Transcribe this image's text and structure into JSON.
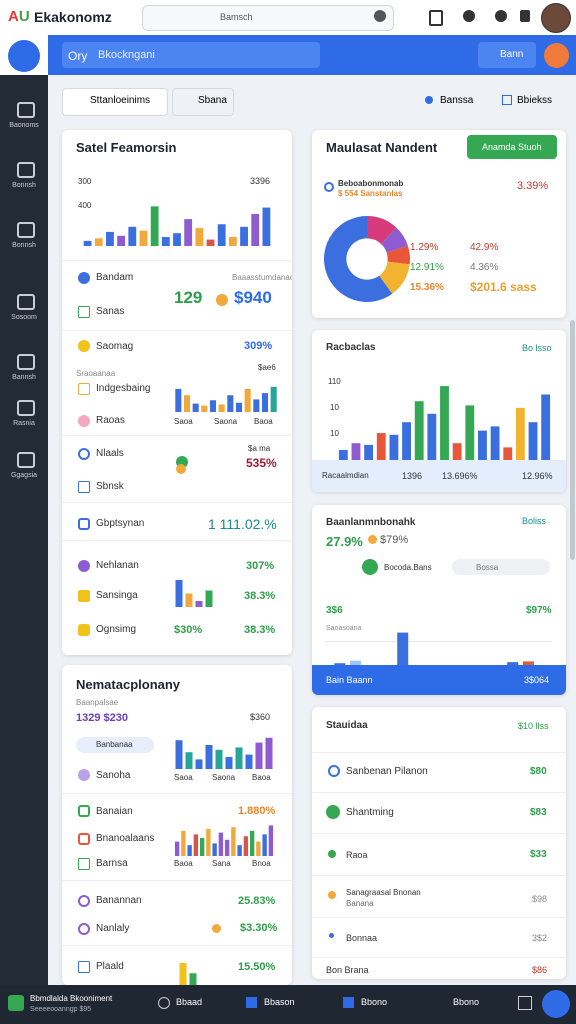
{
  "header": {
    "brand": "Ekakonomz",
    "search": "Bamsch"
  },
  "topbar": {
    "filter_label": "Ory",
    "filter_value": "Bkockngani",
    "button": "Bann"
  },
  "sidebar": [
    "Baonoms",
    "Bonnsh",
    "Bonnsh",
    "Sosoom",
    "Bannsh",
    "Rasnia",
    "Ggagsia"
  ],
  "toolbar": {
    "tabs": [
      "Sttanloeinims",
      "Sbana"
    ],
    "actions": [
      "Banssa",
      "Bbiekss"
    ]
  },
  "sales": {
    "title": "Satel Feamorsin",
    "axis": [
      "300",
      "400"
    ],
    "peak": "3396",
    "chart": {
      "ylim": [
        0,
        100
      ],
      "values": [
        8,
        12,
        22,
        16,
        30,
        24,
        62,
        14,
        20,
        42,
        28,
        10,
        34,
        14,
        30,
        50,
        60
      ],
      "colors": [
        "#3b6fe0",
        "#f2a93b",
        "#3b6fe0",
        "#8e5bd0",
        "#3b6fe0",
        "#f2a93b",
        "#34a853",
        "#3b6fe0",
        "#3b6fe0",
        "#8e5bd0",
        "#f2a93b",
        "#d9534f",
        "#3b6fe0",
        "#f2a93b",
        "#3b6fe0",
        "#8e5bd0",
        "#3b6fe0"
      ]
    },
    "rows": {
      "bandam": "Bandam",
      "note": "Baaasstumdanao",
      "stat1": "129",
      "stat2": "$940",
      "sanas": "Sanas",
      "saomag": "Saomag",
      "saomag_value": "309%",
      "small": "Sraoaanaa",
      "mini_note": "$ae6",
      "mini_labels": [
        "Saoa",
        "Saona",
        "Baoa"
      ],
      "indg": "Indgesbaing",
      "raoas": "Raoas",
      "nlaals": "Nlaals",
      "nlaals_note": "$a ma",
      "nlaals_value": "535%",
      "sbnsk": "Sbnsk",
      "gbpt": "Gbptsynan",
      "gbpt_value": "1 111.02.%",
      "nehl": "Nehlanan",
      "nehl_value": "307%",
      "sans": "Sansinga",
      "sans_value": "38.3%",
      "ogn": "Ognsimg",
      "ogn_value1": "$30%",
      "ogn_value2": "38.3%"
    },
    "mini": {
      "ylim": [
        0,
        100
      ],
      "values": [
        55,
        40,
        20,
        15,
        28,
        18,
        40,
        22,
        55,
        30,
        45,
        60
      ],
      "colors": [
        "#3b6fe0",
        "#f2a93b",
        "#3b6fe0",
        "#f2a93b",
        "#3b6fe0",
        "#f2a93b",
        "#3b6fe0",
        "#3b6fe0",
        "#f2a93b",
        "#3b6fe0",
        "#3b6fe0",
        "#26a69a"
      ]
    },
    "mini2": {
      "ylim": [
        0,
        100
      ],
      "values": [
        90,
        45,
        20,
        55
      ],
      "colors": [
        "#3b6fe0",
        "#f2a93b",
        "#8e5bd0",
        "#34a853"
      ]
    }
  },
  "nemata": {
    "title": "Nematacplonany",
    "sub": "Baanpalsae",
    "stat": "1329 $230",
    "peak": "$360",
    "pill": "Banbanaa",
    "sanoha": "Sanoha",
    "labels": [
      "Saoa",
      "Saona",
      "Baoa"
    ],
    "chart": {
      "ylim": [
        0,
        100
      ],
      "values": [
        60,
        35,
        20,
        50,
        40,
        25,
        45,
        30,
        55,
        65
      ],
      "colors": [
        "#3b6fe0",
        "#26a69a",
        "#3b6fe0",
        "#3b6fe0",
        "#26a69a",
        "#3b6fe0",
        "#26a69a",
        "#3b6fe0",
        "#8e5bd0",
        "#8e5bd0"
      ]
    },
    "banaian": "Banaian",
    "banaian_value": "1.880%",
    "bnano": "Bnanoalaans",
    "bnano_labels": [
      "Baoa",
      "Sana",
      "Bnoa"
    ],
    "chart2": {
      "ylim": [
        0,
        100
      ],
      "values": [
        40,
        70,
        30,
        60,
        50,
        75,
        35,
        65,
        45,
        80,
        30,
        55,
        70,
        40,
        60,
        85
      ],
      "colors": [
        "#8e5bd0",
        "#f2a93b",
        "#3b6fe0",
        "#d9534f",
        "#34a853",
        "#f2a93b",
        "#3b6fe0",
        "#8e5bd0"
      ]
    },
    "barnsa": "Barnsa",
    "banannan": "Banannan",
    "banannan_value": "25.83%",
    "nanlaly": "Nanlaly",
    "nanlaly_value": "$3.30%",
    "plaald": "Plaald",
    "plaald_value": "15.50%",
    "chart3": {
      "ylim": [
        0,
        100
      ],
      "values": [
        85,
        45
      ],
      "colors": [
        "#f2c21b",
        "#34a853"
      ]
    }
  },
  "maul": {
    "title": "Maulasat Nandent",
    "button": "Anamda Stuoh",
    "legend_title": "Beboabonmonab",
    "legend_sub": "$ 554 Sanstanlas",
    "legend_value": "3.39%",
    "donut": {
      "values": [
        12,
        8,
        7,
        13,
        60
      ],
      "colors": [
        "#d63a7a",
        "#8e5bd0",
        "#e8573a",
        "#f2b430",
        "#3b6fe0"
      ]
    },
    "stats": [
      [
        "1.29%",
        "42.9%"
      ],
      [
        "12.91%",
        "4.36%"
      ],
      [
        "15.36%",
        "$201.6 sass"
      ]
    ]
  },
  "rac": {
    "title": "Racbaclas",
    "link": "Bo lsso",
    "axis": [
      "110",
      "10",
      "10"
    ],
    "chart": {
      "ylim": [
        0,
        100
      ],
      "values": [
        12,
        20,
        18,
        32,
        30,
        45,
        70,
        55,
        88,
        20,
        65,
        35,
        40,
        15,
        62,
        45,
        78
      ],
      "colors": [
        "#3b6fe0",
        "#8e5bd0",
        "#3b6fe0",
        "#e8573a",
        "#3b6fe0",
        "#3b6fe0",
        "#34a853",
        "#3b6fe0",
        "#34a853",
        "#e8573a",
        "#34a853",
        "#3b6fe0",
        "#3b6fe0",
        "#e8573a",
        "#f2b430",
        "#3b6fe0",
        "#3b6fe0"
      ]
    },
    "footer": [
      "Racaalmdian",
      "1396",
      "13.696%",
      "12.96%"
    ]
  },
  "baan": {
    "title": "Baanlanmnbonahk",
    "link": "Boliss",
    "stat1": "27.9%",
    "stat2": "$79%",
    "tag": "Bocoda.Bans",
    "pill": "Bossa",
    "left": "3$6",
    "right": "$97%",
    "small": "Saoasoana",
    "chart": {
      "ylim": [
        0,
        100
      ],
      "values": [
        5,
        12,
        0,
        0,
        90,
        0,
        0,
        0,
        0,
        0,
        0,
        8,
        10,
        0
      ],
      "colors": [
        "#3b6fe0",
        "#9cc4f5",
        "#3b6fe0",
        "#3b6fe0",
        "#3b6fe0",
        "#3b6fe0",
        "#3b6fe0",
        "#3b6fe0",
        "#3b6fe0",
        "#3b6fe0",
        "#3b6fe0",
        "#3b6fe0",
        "#e8573a",
        "#3b6fe0"
      ]
    },
    "footer": [
      "Bain Baann",
      "3$064"
    ]
  },
  "staui": {
    "title": "Stauidaa",
    "link": "$10 llss",
    "rows": [
      [
        "Sanbenan Pilanon",
        "$80"
      ],
      [
        "Shantming",
        "$83"
      ],
      [
        "Raoa",
        "$33"
      ],
      [
        "Sanagraasal Bnonan",
        "$98"
      ],
      [
        "Bonnaa",
        "3$2"
      ]
    ],
    "row_sub": "Banana",
    "footer": [
      "Bon Brana",
      "$86"
    ]
  },
  "bottom": {
    "title": "Bbmdlalda Bkooniment",
    "sub": "Seeeeooanngp $95",
    "items": [
      "Bbaad",
      "Bbason",
      "Bbono",
      "Bbono"
    ]
  }
}
